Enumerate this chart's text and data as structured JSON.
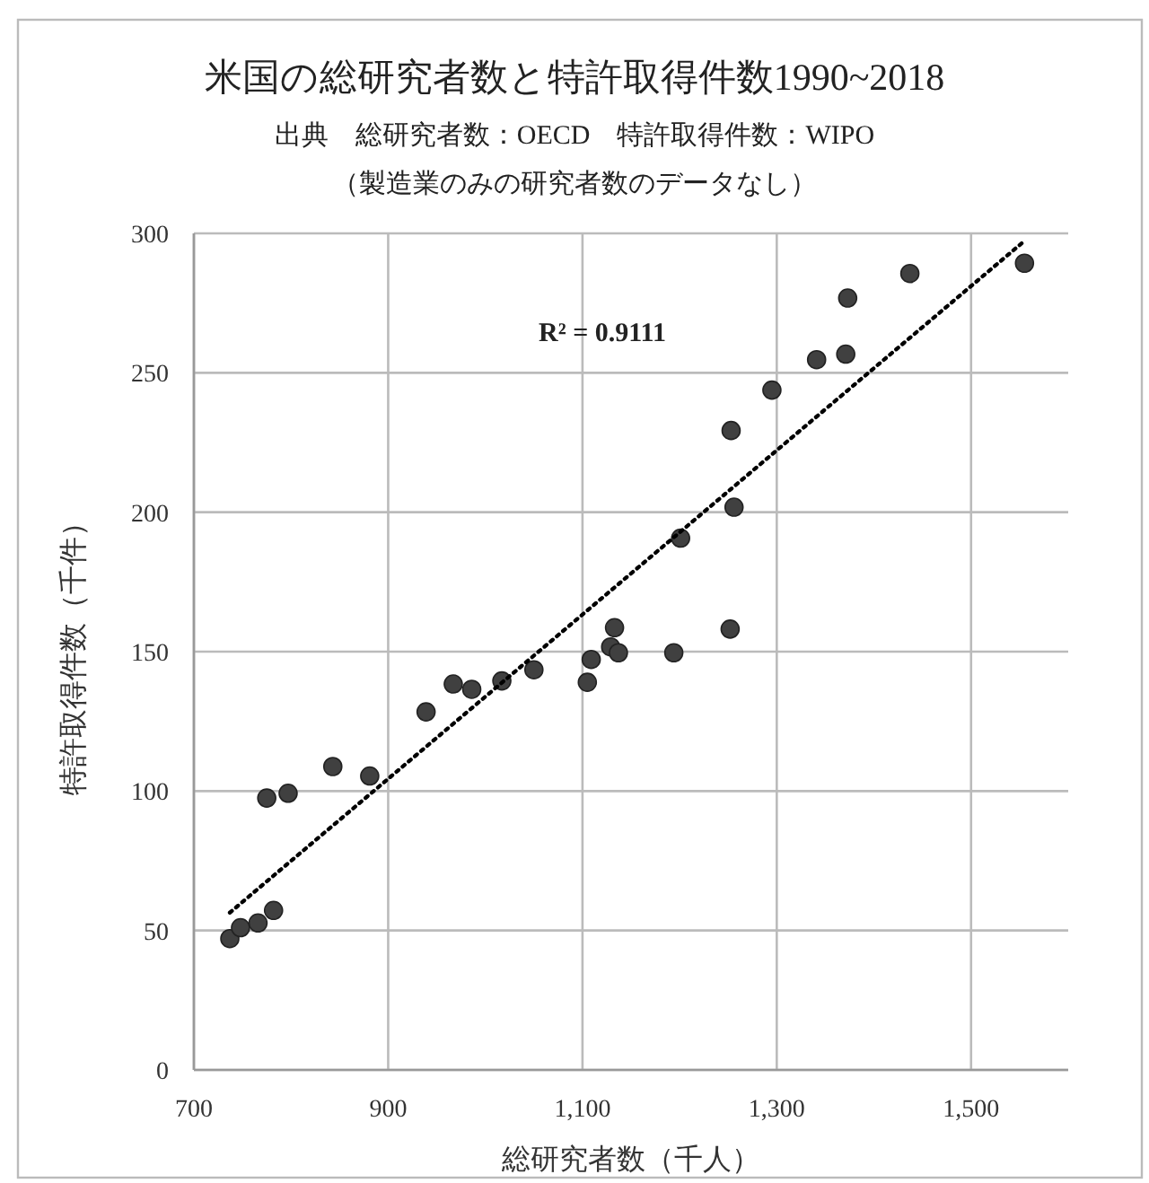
{
  "chart_data": {
    "type": "scatter",
    "title": "米国の総研究者数と特許取得件数1990~2018",
    "subtitle": "出典　総研究者数：OECD　特許取得件数：WIPO",
    "annotations": [
      "（製造業のみの研究者数のデータなし）",
      "R² = 0.9111"
    ],
    "xlabel": "総研究者数（千人）",
    "ylabel": "特許取得件数（千件）",
    "xlim": [
      700,
      1600
    ],
    "xticks": [
      700,
      900,
      {
        "value": 1100,
        "label": "1,100"
      },
      {
        "value": 1300,
        "label": "1,300"
      },
      {
        "value": 1500,
        "label": "1,500"
      }
    ],
    "ylim": [
      0,
      300
    ],
    "yticks": [
      0,
      50,
      100,
      150,
      200,
      250,
      300
    ],
    "grid": true,
    "marker": "circle",
    "x": [
      737,
      748,
      766,
      782,
      775,
      797,
      843,
      881,
      939,
      967,
      986,
      1017,
      1050,
      1105,
      1109,
      1133,
      1129,
      1137,
      1194,
      1252,
      1201,
      1256,
      1253,
      1295,
      1341,
      1371,
      1373,
      1437,
      1555
    ],
    "series": [
      {
        "color": "#404040",
        "values": [
          47.1,
          51.0,
          52.7,
          57.2,
          97.5,
          99.2,
          108.8,
          105.4,
          128.4,
          138.4,
          136.5,
          139.5,
          143.5,
          139.0,
          147.2,
          158.6,
          151.7,
          149.6,
          149.6,
          158.1,
          190.7,
          201.8,
          229.3,
          243.8,
          254.7,
          256.7,
          276.8,
          285.6,
          289.3
        ]
      },
      {
        "type": "line",
        "color": "#000000",
        "line_style": "dotted",
        "marker": "none",
        "x": [
          737,
          1554
        ],
        "values": [
          56.4,
          297
        ]
      }
    ]
  }
}
